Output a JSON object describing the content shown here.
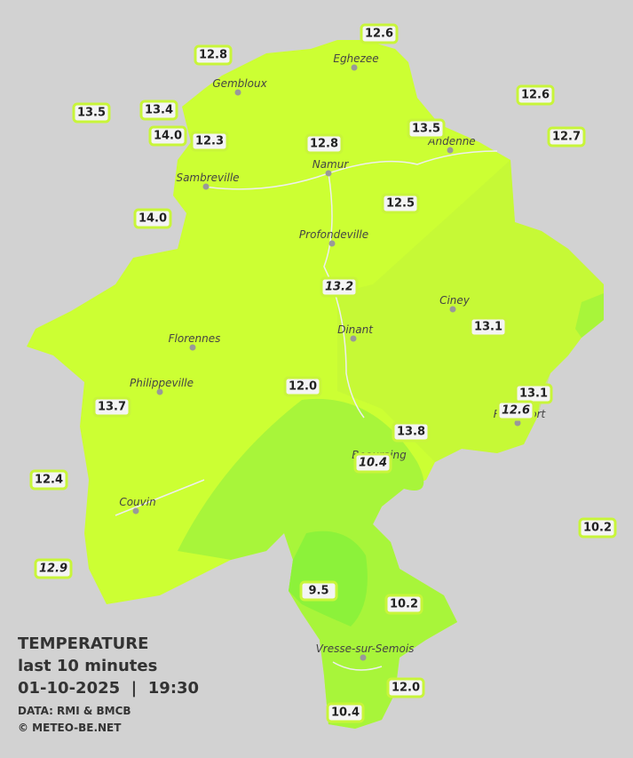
{
  "towns": [
    "Eghezee",
    "Gembloux",
    "Andenne",
    "Namur",
    "Sambreville",
    "Profondeville",
    "Ciney",
    "Dinant",
    "Florennes",
    "Philippeville",
    "Rochefort",
    "Beauraing",
    "Couvin",
    "Vresse-sur-Semois"
  ],
  "stations": [
    {
      "label": "12.6",
      "italic": false
    },
    {
      "label": "12.8",
      "italic": false
    },
    {
      "label": "13.5",
      "italic": false
    },
    {
      "label": "13.4",
      "italic": false
    },
    {
      "label": "14.0",
      "italic": false
    },
    {
      "label": "12.3",
      "italic": false
    },
    {
      "label": "12.8",
      "italic": false
    },
    {
      "label": "13.5",
      "italic": false
    },
    {
      "label": "12.6",
      "italic": false
    },
    {
      "label": "12.7",
      "italic": false
    },
    {
      "label": "12.5",
      "italic": false
    },
    {
      "label": "14.0",
      "italic": false
    },
    {
      "label": "13.2",
      "italic": true
    },
    {
      "label": "13.1",
      "italic": false
    },
    {
      "label": "12.0",
      "italic": false
    },
    {
      "label": "13.1",
      "italic": false
    },
    {
      "label": "12.6",
      "italic": true
    },
    {
      "label": "13.7",
      "italic": false
    },
    {
      "label": "13.8",
      "italic": false
    },
    {
      "label": "10.4",
      "italic": true
    },
    {
      "label": "12.4",
      "italic": false
    },
    {
      "label": "10.2",
      "italic": false
    },
    {
      "label": "12.9",
      "italic": true
    },
    {
      "label": "9.5",
      "italic": false
    },
    {
      "label": "10.2",
      "italic": false
    },
    {
      "label": "12.0",
      "italic": false
    },
    {
      "label": "10.4",
      "italic": false
    }
  ],
  "legend": {
    "title": "TEMPERATURE",
    "period": "last 10 minutes",
    "datetime": "01-10-2025  |  19:30",
    "source": "DATA: RMI & BMCB",
    "copyright": "© METEO-BE.NET"
  }
}
